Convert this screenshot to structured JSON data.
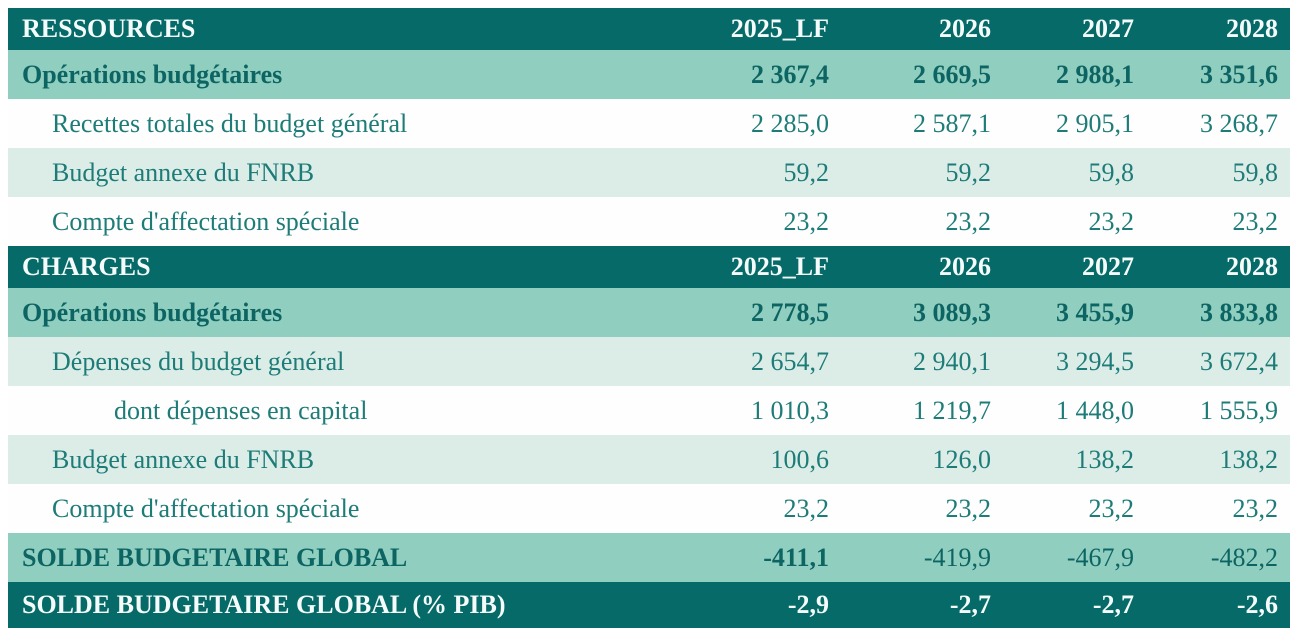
{
  "colors": {
    "header_dark_teal": "#056a68",
    "subtotal_medium_teal": "#90cec0",
    "stripe_pale_teal": "#dcede8",
    "stripe_white": "#fdfefd",
    "body_text_teal": "#1e7c78",
    "bold_text_dark_teal": "#0d6563",
    "header_text_white": "#f4fbfa"
  },
  "columns": [
    "2025_LF",
    "2026",
    "2027",
    "2028"
  ],
  "sections": [
    {
      "header": {
        "label": "RESSOURCES",
        "columns": [
          "2025_LF",
          "2026",
          "2027",
          "2028"
        ]
      },
      "rows": [
        {
          "label": "Opérations budgétaires",
          "values": [
            "2 367,4",
            "2 669,5",
            "2 988,1",
            "3 351,6"
          ],
          "style": "subtotal",
          "indent": 0
        },
        {
          "label": "Recettes totales du budget général",
          "values": [
            "2 285,0",
            "2 587,1",
            "2 905,1",
            "3 268,7"
          ],
          "style": "white",
          "indent": 1
        },
        {
          "label": "Budget annexe du FNRB",
          "values": [
            "59,2",
            "59,2",
            "59,8",
            "59,8"
          ],
          "style": "pale",
          "indent": 1
        },
        {
          "label": "Compte d'affectation spéciale",
          "values": [
            "23,2",
            "23,2",
            "23,2",
            "23,2"
          ],
          "style": "white",
          "indent": 1
        }
      ]
    },
    {
      "header": {
        "label": "CHARGES",
        "columns": [
          "2025_LF",
          "2026",
          "2027",
          "2028"
        ]
      },
      "rows": [
        {
          "label": "Opérations budgétaires",
          "values": [
            "2 778,5",
            "3 089,3",
            "3 455,9",
            "3 833,8"
          ],
          "style": "subtotal",
          "indent": 0
        },
        {
          "label": "Dépenses du budget général",
          "values": [
            "2 654,7",
            "2 940,1",
            "3 294,5",
            "3 672,4"
          ],
          "style": "pale",
          "indent": 1
        },
        {
          "label": "dont dépenses en capital",
          "values": [
            "1 010,3",
            "1 219,7",
            "1 448,0",
            "1 555,9"
          ],
          "style": "white",
          "indent": 2
        },
        {
          "label": "Budget annexe du FNRB",
          "values": [
            "100,6",
            "126,0",
            "138,2",
            "138,2"
          ],
          "style": "pale",
          "indent": 1
        },
        {
          "label": "Compte d'affectation spéciale",
          "values": [
            "23,2",
            "23,2",
            "23,2",
            "23,2"
          ],
          "style": "white",
          "indent": 1
        }
      ]
    }
  ],
  "totals": [
    {
      "label": "SOLDE BUDGETAIRE GLOBAL",
      "values": [
        "-411,1",
        "-419,9",
        "-467,9",
        "-482,2"
      ],
      "style": "total-medium",
      "bold_first_value": true
    },
    {
      "label": "SOLDE BUDGETAIRE GLOBAL (% PIB)",
      "values": [
        "-2,9",
        "-2,7",
        "-2,7",
        "-2,6"
      ],
      "style": "total-dark",
      "bold_first_value": false
    }
  ],
  "chart_data": {
    "type": "table",
    "columns": [
      "",
      "2025_LF",
      "2026",
      "2027",
      "2028"
    ],
    "rows": [
      [
        "RESSOURCES",
        "",
        "",
        "",
        ""
      ],
      [
        "Opérations budgétaires",
        "2 367,4",
        "2 669,5",
        "2 988,1",
        "3 351,6"
      ],
      [
        "Recettes totales du budget général",
        "2 285,0",
        "2 587,1",
        "2 905,1",
        "3 268,7"
      ],
      [
        "Budget annexe du FNRB",
        "59,2",
        "59,2",
        "59,8",
        "59,8"
      ],
      [
        "Compte d'affectation spéciale",
        "23,2",
        "23,2",
        "23,2",
        "23,2"
      ],
      [
        "CHARGES",
        "",
        "",
        "",
        ""
      ],
      [
        "Opérations budgétaires",
        "2 778,5",
        "3 089,3",
        "3 455,9",
        "3 833,8"
      ],
      [
        "Dépenses du budget général",
        "2 654,7",
        "2 940,1",
        "3 294,5",
        "3 672,4"
      ],
      [
        "dont dépenses en capital",
        "1 010,3",
        "1 219,7",
        "1 448,0",
        "1 555,9"
      ],
      [
        "Budget annexe du FNRB",
        "100,6",
        "126,0",
        "138,2",
        "138,2"
      ],
      [
        "Compte d'affectation spéciale",
        "23,2",
        "23,2",
        "23,2",
        "23,2"
      ],
      [
        "SOLDE BUDGETAIRE GLOBAL",
        "-411,1",
        "-419,9",
        "-467,9",
        "-482,2"
      ],
      [
        "SOLDE BUDGETAIRE GLOBAL (% PIB)",
        "-2,9",
        "-2,7",
        "-2,7",
        "-2,6"
      ]
    ]
  }
}
